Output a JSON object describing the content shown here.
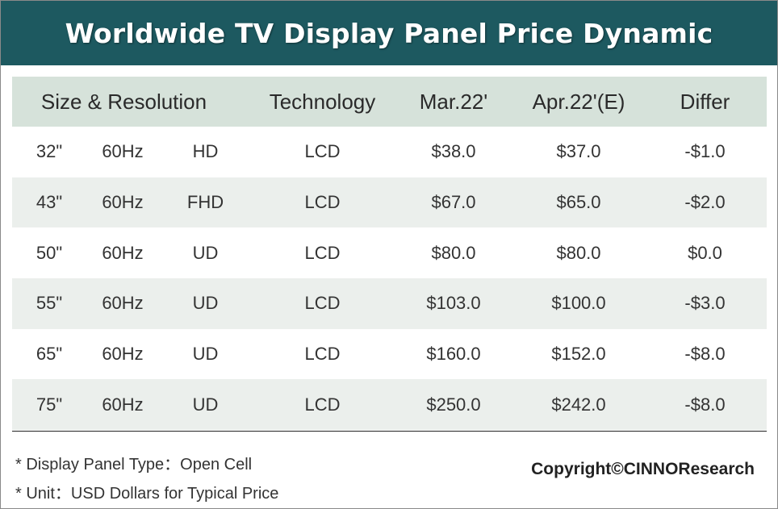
{
  "title": "Worldwide TV Display Panel Price Dynamic",
  "headers": {
    "size_resolution": "Size & Resolution",
    "technology": "Technology",
    "mar": "Mar.22'",
    "apr": "Apr.22'(E)",
    "differ": "Differ"
  },
  "rows": [
    {
      "size": "32\"",
      "hz": "60Hz",
      "res": "HD",
      "tech": "LCD",
      "mar": "$38.0",
      "apr": "$37.0",
      "differ": "-$1.0"
    },
    {
      "size": "43\"",
      "hz": "60Hz",
      "res": "FHD",
      "tech": "LCD",
      "mar": "$67.0",
      "apr": "$65.0",
      "differ": "-$2.0"
    },
    {
      "size": "50\"",
      "hz": "60Hz",
      "res": "UD",
      "tech": "LCD",
      "mar": "$80.0",
      "apr": "$80.0",
      "differ": "$0.0"
    },
    {
      "size": "55\"",
      "hz": "60Hz",
      "res": "UD",
      "tech": "LCD",
      "mar": "$103.0",
      "apr": "$100.0",
      "differ": "-$3.0"
    },
    {
      "size": "65\"",
      "hz": "60Hz",
      "res": "UD",
      "tech": "LCD",
      "mar": "$160.0",
      "apr": "$152.0",
      "differ": "-$8.0"
    },
    {
      "size": "75\"",
      "hz": "60Hz",
      "res": "UD",
      "tech": "LCD",
      "mar": "$250.0",
      "apr": "$242.0",
      "differ": "-$8.0"
    }
  ],
  "notes": {
    "panel_type": "* Display Panel Type：Open Cell",
    "unit": "* Unit：USD Dollars for Typical Price"
  },
  "copyright": "Copyright©CINNOResearch",
  "colors": {
    "title_bar": "#1d5960",
    "header_row": "#d6e2da",
    "shaded_row": "#ebefec"
  },
  "chart_data": {
    "type": "table",
    "title": "Worldwide TV Display Panel Price Dynamic",
    "columns": [
      "Size & Resolution",
      "Technology",
      "Mar.22'",
      "Apr.22'(E)",
      "Differ"
    ],
    "rows": [
      [
        "32\" 60Hz HD",
        "LCD",
        38.0,
        37.0,
        -1.0
      ],
      [
        "43\" 60Hz FHD",
        "LCD",
        67.0,
        65.0,
        -2.0
      ],
      [
        "50\" 60Hz UD",
        "LCD",
        80.0,
        80.0,
        0.0
      ],
      [
        "55\" 60Hz UD",
        "LCD",
        103.0,
        100.0,
        -3.0
      ],
      [
        "65\" 60Hz UD",
        "LCD",
        160.0,
        152.0,
        -8.0
      ],
      [
        "75\" 60Hz UD",
        "LCD",
        250.0,
        242.0,
        -8.0
      ]
    ]
  }
}
